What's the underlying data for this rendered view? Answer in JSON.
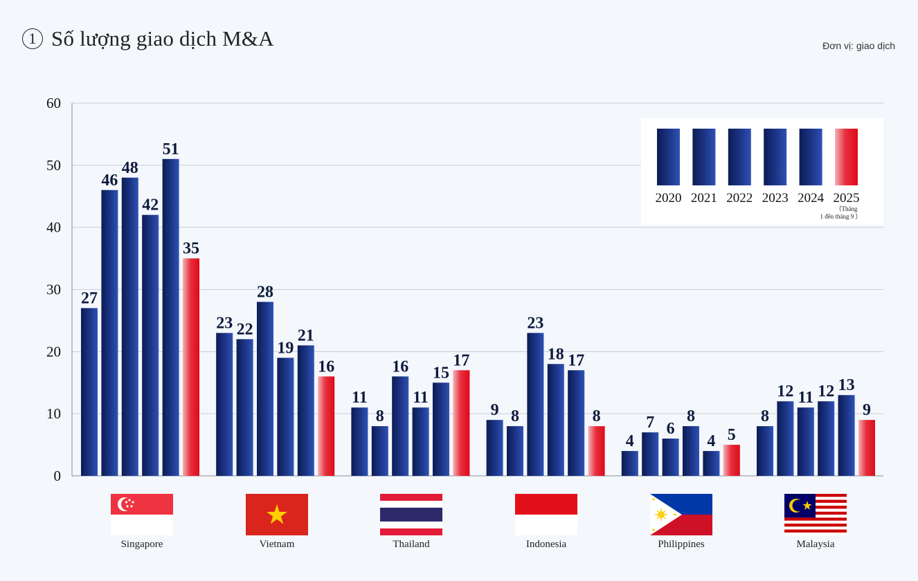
{
  "title": {
    "number": "1",
    "text": "Số lượng giao dịch M&A"
  },
  "unit_label": "Đơn vị: giao dịch",
  "colors": {
    "bar_navy_dark": "#0d1f5c",
    "bar_navy_light": "#2b4aa8",
    "bar_red": "#e0101e",
    "bar_red_light": "#f6bcc0",
    "grid": "#c9ced6",
    "background": "#f4f7fb"
  },
  "chart_data": {
    "type": "bar",
    "title": "Số lượng giao dịch M&A",
    "xlabel": "",
    "ylabel": "",
    "ylim": [
      0,
      60
    ],
    "y_ticks": [
      0,
      10,
      20,
      30,
      40,
      50,
      60
    ],
    "grid": true,
    "legend_position": "top-right",
    "categories": [
      "Singapore",
      "Vietnam",
      "Thailand",
      "Indonesia",
      "Philippines",
      "Malaysia"
    ],
    "series": [
      {
        "name": "2020",
        "values": [
          27,
          23,
          11,
          9,
          4,
          8
        ]
      },
      {
        "name": "2021",
        "values": [
          46,
          22,
          8,
          8,
          7,
          12
        ]
      },
      {
        "name": "2022",
        "values": [
          48,
          28,
          16,
          23,
          6,
          11
        ]
      },
      {
        "name": "2023",
        "values": [
          42,
          19,
          11,
          18,
          8,
          12
        ]
      },
      {
        "name": "2024",
        "values": [
          51,
          21,
          15,
          17,
          4,
          13
        ]
      },
      {
        "name": "2025",
        "values": [
          35,
          16,
          17,
          8,
          5,
          9
        ]
      }
    ],
    "data_labels": [
      [
        "27",
        "46",
        "48",
        "42",
        "51",
        "35"
      ],
      [
        "23",
        "22",
        "28",
        "19",
        "21",
        "16"
      ],
      [
        "11",
        "8",
        "16",
        "11",
        "15",
        "17"
      ],
      [
        "9",
        "8",
        "23",
        "18",
        "17",
        "8"
      ],
      [
        "4",
        "7",
        "6",
        "8",
        "4",
        "5"
      ],
      [
        "8",
        "12",
        "11",
        "12",
        "13",
        "9"
      ]
    ],
    "legend": {
      "entries": [
        "2020",
        "2021",
        "2022",
        "2023",
        "2024",
        "2025"
      ],
      "note_line1": "（Tháng",
      "note_line2": "1 đến tháng 9 ）"
    }
  },
  "flags": [
    {
      "country": "Singapore",
      "icon": "singapore-flag-icon"
    },
    {
      "country": "Vietnam",
      "icon": "vietnam-flag-icon"
    },
    {
      "country": "Thailand",
      "icon": "thailand-flag-icon"
    },
    {
      "country": "Indonesia",
      "icon": "indonesia-flag-icon"
    },
    {
      "country": "Philippines",
      "icon": "philippines-flag-icon"
    },
    {
      "country": "Malaysia",
      "icon": "malaysia-flag-icon"
    }
  ]
}
